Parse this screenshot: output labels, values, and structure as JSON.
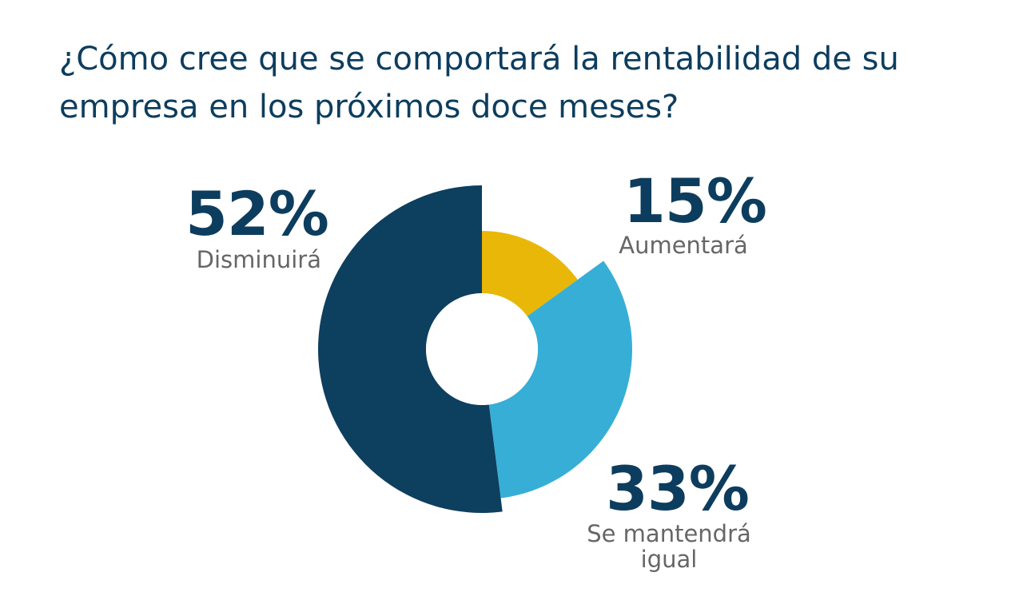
{
  "chart_data": {
    "type": "pie",
    "title": "¿Cómo cree que se comportará la rentabilidad de su empresa en los próximos doce meses?",
    "donut": true,
    "slices": [
      {
        "label": "Disminuirá",
        "value": 52,
        "value_label": "52%",
        "color": "#0d3f5f"
      },
      {
        "label": "Aumentará",
        "value": 15,
        "value_label": "15%",
        "color": "#e9b707"
      },
      {
        "label": "Se mantendrá\nigual",
        "value": 33,
        "value_label": "33%",
        "color": "#37aed6"
      }
    ]
  }
}
